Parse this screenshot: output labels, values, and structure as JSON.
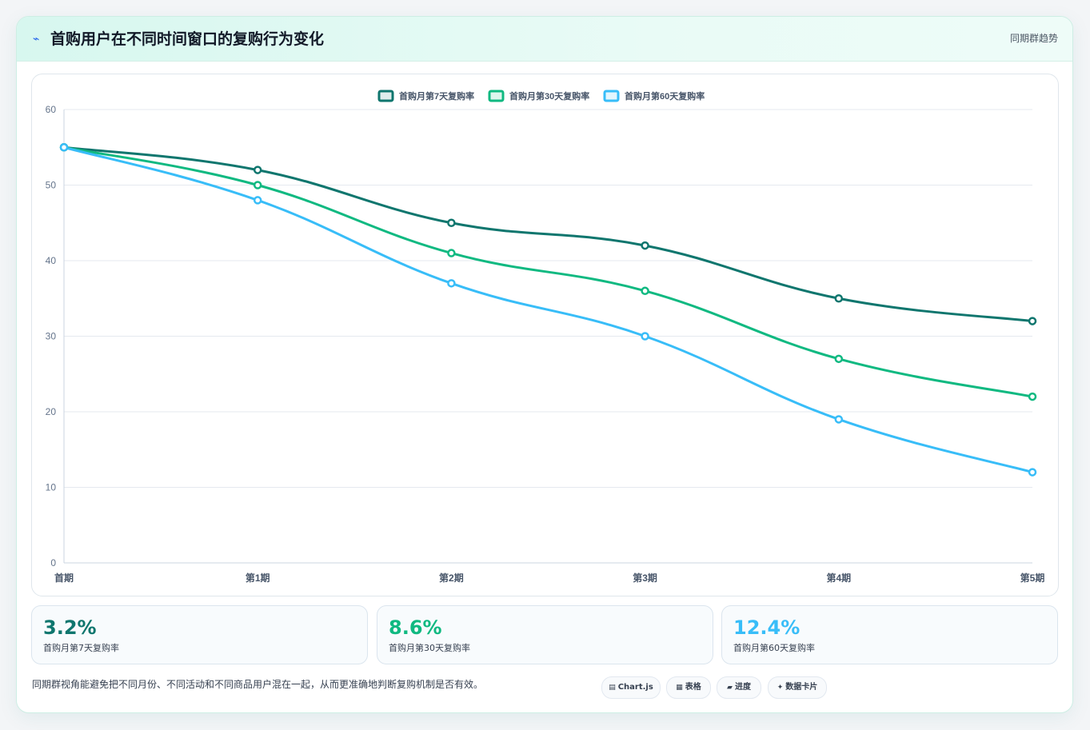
{
  "header": {
    "icon": "bolt-icon",
    "title": "首购用户在不同时间窗口的复购行为变化",
    "badge": "同期群趋势"
  },
  "chart_data": {
    "type": "line",
    "title": "",
    "xlabel": "",
    "ylabel": "",
    "categories": [
      "首期",
      "第1期",
      "第2期",
      "第3期",
      "第4期",
      "第5期"
    ],
    "series": [
      {
        "name": "首购月第7天复购率",
        "color": "#0f766e",
        "values": [
          55,
          52,
          45,
          42,
          35,
          32
        ]
      },
      {
        "name": "首购月第30天复购率",
        "color": "#10b981",
        "values": [
          55,
          50,
          41,
          36,
          27,
          22
        ]
      },
      {
        "name": "首购月第60天复购率",
        "color": "#38bdf8",
        "values": [
          55,
          48,
          37,
          30,
          19,
          12
        ]
      }
    ],
    "ylim": [
      0,
      60
    ],
    "yticks": [
      0,
      10,
      20,
      30,
      40,
      50,
      60
    ],
    "grid": true,
    "legend": "top-center"
  },
  "stats": [
    {
      "value": "3.2%",
      "label": "首购月第7天复购率",
      "color": "#0f766e"
    },
    {
      "value": "8.6%",
      "label": "首购月第30天复购率",
      "color": "#10b981"
    },
    {
      "value": "12.4%",
      "label": "首购月第60天复购率",
      "color": "#38bdf8"
    }
  ],
  "note": "同期群视角能避免把不同月份、不同活动和不同商品用户混在一起，从而更准确地判断复购机制是否有效。",
  "chips": [
    {
      "icon": "chart-icon",
      "label": "Chart.js"
    },
    {
      "icon": "table-icon",
      "label": "表格"
    },
    {
      "icon": "progress-icon",
      "label": "进度"
    },
    {
      "icon": "card-icon",
      "label": "数据卡片"
    }
  ]
}
